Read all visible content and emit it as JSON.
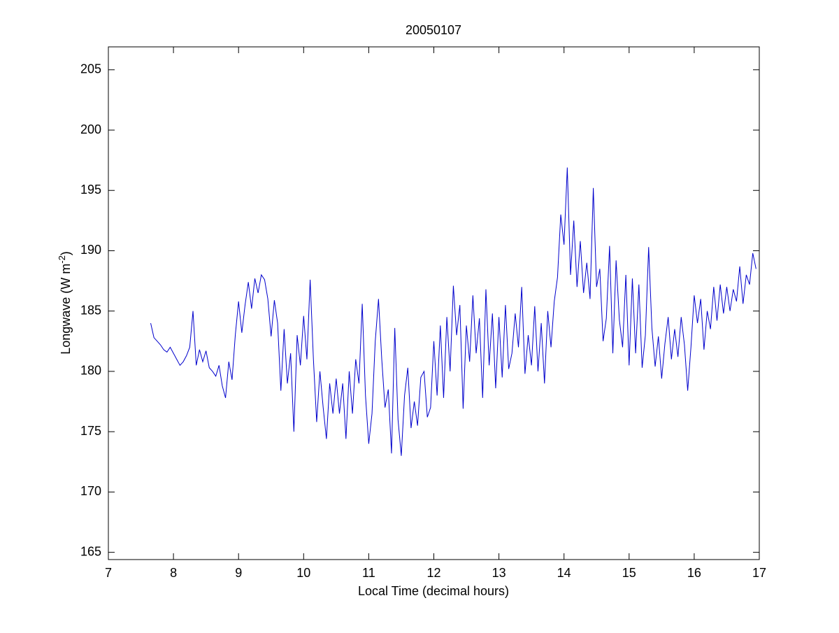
{
  "chart_data": {
    "type": "line",
    "title": "20050107",
    "xlabel": "Local Time (decimal hours)",
    "ylabel": {
      "text": "Longwave (W m",
      "superscript": "-2",
      "suffix": ")"
    },
    "xlim": [
      7,
      17
    ],
    "xticks": [
      7,
      8,
      9,
      10,
      11,
      12,
      13,
      14,
      15,
      16,
      17
    ],
    "ylim": [
      164.4,
      206.9
    ],
    "yticks": [
      165,
      170,
      175,
      180,
      185,
      190,
      195,
      200,
      205
    ],
    "grid": false,
    "x": [
      7.65,
      7.7,
      7.75,
      7.8,
      7.85,
      7.9,
      7.95,
      8,
      8.05,
      8.1,
      8.15,
      8.2,
      8.25,
      8.3,
      8.35,
      8.4,
      8.45,
      8.5,
      8.55,
      8.6,
      8.65,
      8.7,
      8.75,
      8.8,
      8.85,
      8.9,
      8.95,
      9,
      9.05,
      9.1,
      9.15,
      9.2,
      9.25,
      9.3,
      9.35,
      9.4,
      9.45,
      9.5,
      9.55,
      9.6,
      9.65,
      9.7,
      9.75,
      9.8,
      9.85,
      9.9,
      9.95,
      10,
      10.05,
      10.1,
      10.15,
      10.2,
      10.25,
      10.3,
      10.35,
      10.4,
      10.45,
      10.5,
      10.55,
      10.6,
      10.65,
      10.7,
      10.75,
      10.8,
      10.85,
      10.9,
      10.95,
      11,
      11.05,
      11.1,
      11.15,
      11.2,
      11.25,
      11.3,
      11.35,
      11.4,
      11.45,
      11.5,
      11.55,
      11.6,
      11.65,
      11.7,
      11.75,
      11.8,
      11.85,
      11.9,
      11.95,
      12,
      12.05,
      12.1,
      12.15,
      12.2,
      12.25,
      12.3,
      12.35,
      12.4,
      12.45,
      12.5,
      12.55,
      12.6,
      12.65,
      12.7,
      12.75,
      12.8,
      12.85,
      12.9,
      12.95,
      13,
      13.05,
      13.1,
      13.15,
      13.2,
      13.25,
      13.3,
      13.35,
      13.4,
      13.45,
      13.5,
      13.55,
      13.6,
      13.65,
      13.7,
      13.75,
      13.8,
      13.85,
      13.9,
      13.95,
      14,
      14.05,
      14.1,
      14.15,
      14.2,
      14.25,
      14.3,
      14.35,
      14.4,
      14.45,
      14.5,
      14.55,
      14.6,
      14.65,
      14.7,
      14.75,
      14.8,
      14.85,
      14.9,
      14.95,
      15,
      15.05,
      15.1,
      15.15,
      15.2,
      15.25,
      15.3,
      15.35,
      15.4,
      15.45,
      15.5,
      15.55,
      15.6,
      15.65,
      15.7,
      15.75,
      15.8,
      15.85,
      15.9,
      15.95,
      16,
      16.05,
      16.1,
      16.15,
      16.2,
      16.25,
      16.3,
      16.35,
      16.4,
      16.45,
      16.5,
      16.55,
      16.6,
      16.65,
      16.7,
      16.75,
      16.8,
      16.85,
      16.9,
      16.95
    ],
    "series": [
      {
        "color": "#0000cc",
        "values": [
          184,
          182.8,
          182.5,
          182.2,
          181.8,
          181.6,
          182,
          181.5,
          181,
          180.5,
          180.8,
          181.3,
          182,
          185,
          180.5,
          181.8,
          180.8,
          181.7,
          180.3,
          180,
          179.6,
          180.5,
          178.8,
          177.8,
          180.8,
          179.3,
          183,
          185.8,
          183.2,
          185.5,
          187.4,
          185.2,
          187.7,
          186.5,
          188,
          187.6,
          186,
          182.9,
          185.9,
          184,
          178.4,
          183.5,
          179,
          181.5,
          175,
          183,
          180.5,
          184.6,
          181,
          187.6,
          181,
          175.8,
          180,
          177,
          174.4,
          179,
          176.5,
          179.4,
          176.5,
          179,
          174.4,
          180,
          176.5,
          181,
          179,
          185.6,
          178,
          174,
          176.5,
          182.5,
          186,
          181,
          177,
          178.5,
          173.2,
          183.6,
          176,
          173,
          178,
          180.3,
          175.3,
          177.5,
          175.5,
          179.5,
          180,
          176.2,
          177,
          182.5,
          178,
          183.8,
          177.8,
          184.5,
          180,
          187.1,
          183,
          185.5,
          176.9,
          183.8,
          180.8,
          186.3,
          181.5,
          184.4,
          177.8,
          186.8,
          180.5,
          184.8,
          178.6,
          184.5,
          179.5,
          185.5,
          180.2,
          181.5,
          184.8,
          182,
          187,
          179.8,
          183,
          180.5,
          185.4,
          180,
          184,
          179,
          185,
          182,
          185.8,
          187.8,
          193,
          190.5,
          196.9,
          188,
          192.5,
          187,
          190.8,
          186.5,
          189,
          186,
          195.2,
          187,
          188.5,
          182.5,
          184.4,
          190.4,
          181.5,
          189.2,
          184.3,
          182,
          188,
          180.5,
          187.7,
          181.5,
          187.2,
          180.3,
          183,
          190.3,
          183.6,
          180.4,
          182.9,
          179.4,
          182.3,
          184.5,
          181,
          183.5,
          181.2,
          184.5,
          182.2,
          178.4,
          182,
          186.3,
          184,
          186,
          181.8,
          185,
          183.5,
          187,
          184.2,
          187.2,
          184.8,
          187,
          185,
          186.8,
          185.8,
          188.7,
          185.6,
          188,
          187.2,
          189.8,
          188.5
        ]
      }
    ]
  }
}
